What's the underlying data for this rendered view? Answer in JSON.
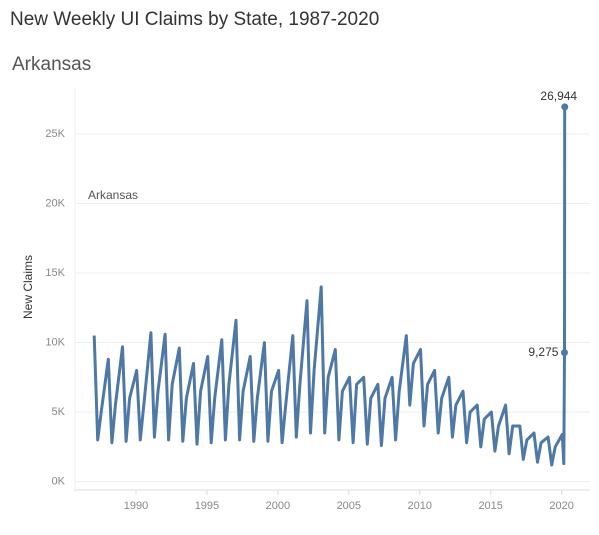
{
  "chart_data": {
    "type": "line",
    "title": "New Weekly UI Claims by State, 1987-2020",
    "subtitle": "Arkansas",
    "ylabel": "New Claims",
    "xlim": [
      1985.7,
      2022.0
    ],
    "xticks": [
      1990,
      1995,
      2000,
      2005,
      2010,
      2015,
      2020
    ],
    "ylim": [
      -600,
      28300
    ],
    "yticks": [
      {
        "value": 0,
        "label": "0K"
      },
      {
        "value": 5000,
        "label": "5K"
      },
      {
        "value": 10000,
        "label": "10K"
      },
      {
        "value": 15000,
        "label": "15K"
      },
      {
        "value": 20000,
        "label": "20K"
      },
      {
        "value": 25000,
        "label": "25K"
      }
    ],
    "grid": true,
    "series": [
      {
        "name": "Arkansas",
        "color": "#4e78a6",
        "x": [
          1987.05,
          1987.3,
          1987.55,
          1988.05,
          1988.3,
          1988.55,
          1989.05,
          1989.3,
          1989.55,
          1990.05,
          1990.3,
          1990.55,
          1991.05,
          1991.3,
          1991.55,
          1992.05,
          1992.3,
          1992.55,
          1993.05,
          1993.3,
          1993.55,
          1994.05,
          1994.3,
          1994.55,
          1995.05,
          1995.3,
          1995.55,
          1996.05,
          1996.3,
          1996.55,
          1997.05,
          1997.3,
          1997.55,
          1998.05,
          1998.3,
          1998.55,
          1999.05,
          1999.3,
          1999.55,
          2000.05,
          2000.3,
          2000.55,
          2001.05,
          2001.3,
          2001.55,
          2002.05,
          2002.3,
          2002.55,
          2003.05,
          2003.3,
          2003.55,
          2004.05,
          2004.3,
          2004.55,
          2005.05,
          2005.3,
          2005.55,
          2006.05,
          2006.3,
          2006.55,
          2007.05,
          2007.3,
          2007.55,
          2008.05,
          2008.3,
          2008.55,
          2009.05,
          2009.3,
          2009.55,
          2010.05,
          2010.3,
          2010.55,
          2011.05,
          2011.3,
          2011.55,
          2012.05,
          2012.3,
          2012.55,
          2013.05,
          2013.3,
          2013.55,
          2014.05,
          2014.3,
          2014.55,
          2015.05,
          2015.3,
          2015.55,
          2016.05,
          2016.3,
          2016.55,
          2017.05,
          2017.3,
          2017.55,
          2018.05,
          2018.3,
          2018.55,
          2019.05,
          2019.3,
          2019.55,
          2020.05,
          2020.15,
          2020.2,
          2020.22
        ],
        "values": [
          10500,
          3000,
          5000,
          8800,
          2800,
          5500,
          9700,
          2900,
          6000,
          8000,
          3000,
          5500,
          10700,
          3200,
          6500,
          10600,
          3000,
          7000,
          9600,
          2900,
          6000,
          8500,
          2700,
          6500,
          9000,
          2800,
          6000,
          10200,
          3000,
          7000,
          11600,
          3000,
          6500,
          9000,
          2900,
          6000,
          10000,
          2900,
          6500,
          8000,
          2800,
          5500,
          10500,
          3200,
          7000,
          13000,
          3500,
          8000,
          14000,
          3500,
          7500,
          9500,
          3000,
          6500,
          7500,
          2800,
          7000,
          7500,
          2700,
          6000,
          7000,
          2600,
          6000,
          7500,
          3000,
          6500,
          10500,
          5500,
          8500,
          9500,
          4000,
          7000,
          8000,
          3500,
          6000,
          7500,
          3200,
          5500,
          6500,
          2800,
          5000,
          5500,
          2500,
          4500,
          5000,
          2200,
          4000,
          5500,
          2000,
          4000,
          4000,
          1600,
          3000,
          3500,
          1400,
          2800,
          3200,
          1200,
          2500,
          3400,
          1300,
          9275,
          26944
        ],
        "value_labels": [
          null,
          null,
          null,
          null,
          null,
          null,
          null,
          null,
          null,
          null,
          null,
          null,
          null,
          null,
          null,
          null,
          null,
          null,
          null,
          null,
          null,
          null,
          null,
          null,
          null,
          null,
          null,
          null,
          null,
          null,
          null,
          null,
          null,
          null,
          null,
          null,
          null,
          null,
          null,
          null,
          null,
          null,
          null,
          null,
          null,
          null,
          null,
          null,
          null,
          null,
          null,
          null,
          null,
          null,
          null,
          null,
          null,
          null,
          null,
          null,
          null,
          null,
          null,
          null,
          null,
          null,
          null,
          null,
          null,
          null,
          null,
          null,
          null,
          null,
          null,
          null,
          null,
          null,
          null,
          null,
          null,
          null,
          null,
          null,
          null,
          null,
          null,
          null,
          null,
          null,
          null,
          null,
          null,
          null,
          null,
          null,
          null,
          null,
          null,
          null,
          null,
          "9,275",
          "26,944"
        ]
      }
    ]
  }
}
